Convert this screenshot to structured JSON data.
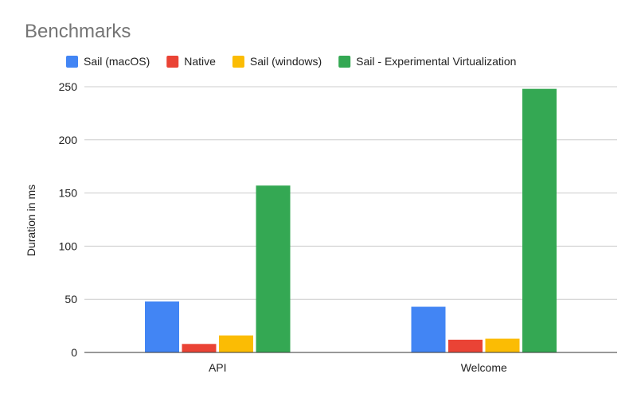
{
  "chart_data": {
    "type": "bar",
    "title": "Benchmarks",
    "xlabel": "",
    "ylabel": "Duration in ms",
    "ylim": [
      0,
      250
    ],
    "yticks": [
      0,
      50,
      100,
      150,
      200,
      250
    ],
    "grid": true,
    "legend_position": "top",
    "categories": [
      "API",
      "Welcome"
    ],
    "series": [
      {
        "name": "Sail (macOS)",
        "color": "#4285f4",
        "values": [
          48,
          43
        ]
      },
      {
        "name": "Native",
        "color": "#ea4335",
        "values": [
          8,
          12
        ]
      },
      {
        "name": "Sail (windows)",
        "color": "#fbbc04",
        "values": [
          16,
          13
        ]
      },
      {
        "name": "Sail - Experimental Virtualization",
        "color": "#34a853",
        "values": [
          157,
          248
        ]
      }
    ]
  }
}
